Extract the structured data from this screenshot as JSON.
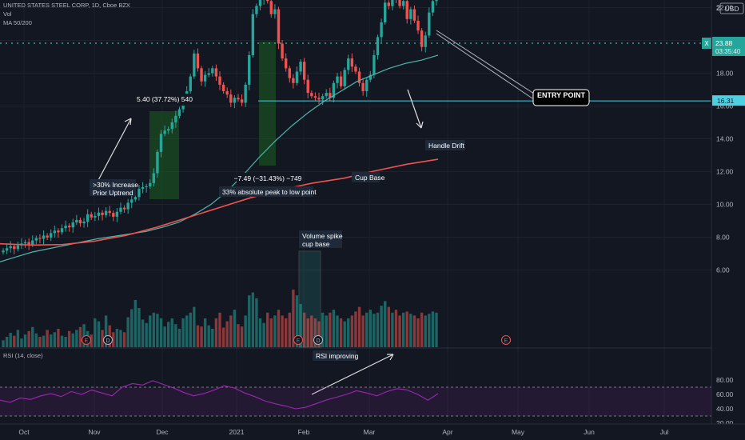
{
  "header": {
    "symbol_line": "UNITED STATES STEEL CORP, 1D, Cboe BZX",
    "vol_label": "Vol",
    "ma_label": "MA 50/200",
    "rsi_label": "RSI (14, close)"
  },
  "price_axis": {
    "currency": "USD",
    "top_value": "24",
    "current_price": "23.88",
    "countdown": "03:35:40",
    "marker": "X",
    "hline_label": "16.31",
    "hidden_label": "16.00"
  },
  "colors": {
    "background": "#131722",
    "up": "#26a69a",
    "down": "#ef5350",
    "ma50": "#4db6ac",
    "ma200": "#ef5350",
    "rsi": "#9c27b0",
    "grid": "#1e222d"
  },
  "events": {
    "earnings": "E",
    "dividend": "D"
  },
  "annotations": {
    "prior_uptrend": ">30% Increase\nPrior Uptrend",
    "measure_up": "5.40 (37.72%) 540",
    "measure_down": "−7.49 (−31.43%) −749",
    "peak_to_low": "33% absolute peak to low point",
    "cup_base": "Cup Base",
    "handle_drift": "Handle Drift",
    "entry_point": "ENTRY POINT",
    "volume_spike": "Volume spike\ncup base",
    "rsi_improving": "RSI improving"
  },
  "chart_data": {
    "type": "candlestick",
    "x_axis_labels": [
      "Oct",
      "Nov",
      "Dec",
      "2021",
      "Feb",
      "Mar",
      "Apr",
      "May",
      "Jun",
      "Jul"
    ],
    "y_axis_ticks": [
      "22.00",
      "20.00",
      "18.00",
      "14.00",
      "12.00",
      "10.00",
      "8.00",
      "6.00"
    ],
    "rsi_ticks": [
      "80.00",
      "60.00",
      "40.00",
      "20.00"
    ],
    "rsi_bands": [
      70,
      30
    ],
    "hline": 16.31,
    "current_price": 23.88,
    "close": [
      7.18,
      7.33,
      7.45,
      7.28,
      7.5,
      7.62,
      7.7,
      7.55,
      7.8,
      7.95,
      7.9,
      8.1,
      7.98,
      8.25,
      8.4,
      8.3,
      8.55,
      8.7,
      8.6,
      8.9,
      9.05,
      8.85,
      8.95,
      9.4,
      9.2,
      9.3,
      9.5,
      9.35,
      9.6,
      9.48,
      9.25,
      9.55,
      9.8,
      9.7,
      10.1,
      10.3,
      10.45,
      10.95,
      11.05,
      11.1,
      11.3,
      11.9,
      13.2,
      14.3,
      14.5,
      14.6,
      15.0,
      15.4,
      15.8,
      16.3,
      16.9,
      17.8,
      19.2,
      18.3,
      17.5,
      17.9,
      18.0,
      18.3,
      17.8,
      17.3,
      16.9,
      16.7,
      16.2,
      16.5,
      16.4,
      16.2,
      17.3,
      19.1,
      21.6,
      22.1,
      22.5,
      23.2,
      22.4,
      21.6,
      21.9,
      19.8,
      18.9,
      18.3,
      17.7,
      17.4,
      18.1,
      18.7,
      17.6,
      16.8,
      16.6,
      16.5,
      16.4,
      16.6,
      16.8,
      16.5,
      17.4,
      17.8,
      17.2,
      18.2,
      18.9,
      18.4,
      18.1,
      17.4,
      16.9,
      17.6,
      17.9,
      19.1,
      20.2,
      21.1,
      22.3,
      22.1,
      23.3,
      22.6,
      22.1,
      22.4,
      21.3,
      21.9,
      21.2,
      20.6,
      19.6,
      20.3,
      21.7,
      22.4,
      23.88
    ],
    "ma50_from_index": 0,
    "ma50": [
      6.5,
      6.8,
      7.1,
      7.3,
      7.5,
      7.7,
      7.9,
      8.05,
      8.2,
      8.35,
      8.6,
      8.9,
      9.4,
      10.0,
      10.8,
      11.8,
      12.9,
      13.9,
      14.8,
      15.6,
      16.3,
      16.9,
      17.5,
      17.9,
      18.3,
      18.6,
      18.8,
      19.1
    ],
    "ma200": [
      7.6,
      7.52,
      7.55,
      7.75,
      8.1,
      8.6,
      9.2,
      9.8,
      10.4,
      10.9,
      11.3,
      11.6,
      12.05,
      12.45,
      12.75
    ],
    "rsi": [
      52,
      49,
      55,
      53,
      58,
      61,
      57,
      64,
      60,
      66,
      62,
      58,
      70,
      75,
      73,
      79,
      74,
      69,
      63,
      58,
      61,
      66,
      72,
      69,
      62,
      57,
      51,
      47,
      44,
      40,
      42,
      47,
      52,
      56,
      60,
      65,
      62,
      58,
      64,
      68,
      66,
      60,
      52,
      61
    ],
    "volume_ratio": [
      0.12,
      0.18,
      0.25,
      0.2,
      0.3,
      0.15,
      0.22,
      0.28,
      0.35,
      0.24,
      0.18,
      0.2,
      0.3,
      0.22,
      0.26,
      0.32,
      0.2,
      0.18,
      0.28,
      0.24,
      0.3,
      0.35,
      0.4,
      0.28,
      0.22,
      0.5,
      0.45,
      0.3,
      0.55,
      0.38,
      0.26,
      0.32,
      0.3,
      0.26,
      0.52,
      0.66,
      0.82,
      0.68,
      0.48,
      0.42,
      0.55,
      0.6,
      0.58,
      0.5,
      0.36,
      0.44,
      0.5,
      0.4,
      0.32,
      0.5,
      0.55,
      0.6,
      0.7,
      0.38,
      0.36,
      0.5,
      0.38,
      0.32,
      0.5,
      0.6,
      0.34,
      0.45,
      0.55,
      0.65,
      0.4,
      0.36,
      0.55,
      0.9,
      0.95,
      0.85,
      0.5,
      0.42,
      0.6,
      0.5,
      0.55,
      0.65,
      0.55,
      0.5,
      0.6,
      1.0,
      0.9,
      0.75,
      0.6,
      0.5,
      0.55,
      0.5,
      0.45,
      0.6,
      0.55,
      0.6,
      0.65,
      0.55,
      0.5,
      0.45,
      0.5,
      0.55,
      0.62,
      0.7,
      0.55,
      0.6,
      0.65,
      0.58,
      0.6,
      0.72,
      0.8,
      0.7,
      0.6,
      0.65,
      0.55,
      0.6,
      0.62,
      0.58,
      0.55,
      0.5,
      0.6,
      0.55,
      0.58,
      0.62,
      0.6,
      0.55,
      0.65
    ]
  }
}
